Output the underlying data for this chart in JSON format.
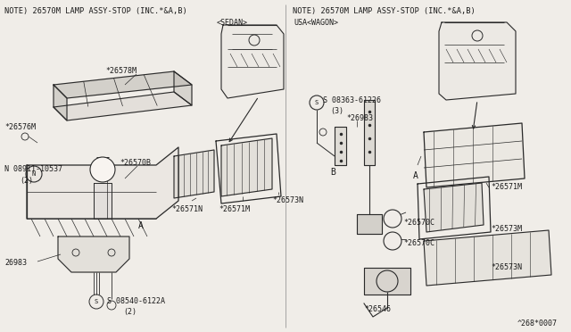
{
  "bg_color": "#f0ede8",
  "line_color": "#2a2a2a",
  "text_color": "#1a1a1a",
  "fig_width": 6.4,
  "fig_height": 3.72,
  "dpi": 100,
  "note_left": "NOTE) 26570M LAMP ASSY-STOP (INC.*&A,B)",
  "note_right": "NOTE) 26570M LAMP ASSY-STOP (INC.*&A,B)",
  "label_sedan": "<SEDAN>",
  "label_wagon": "USA<WAGON>",
  "footer": "^268*0007"
}
